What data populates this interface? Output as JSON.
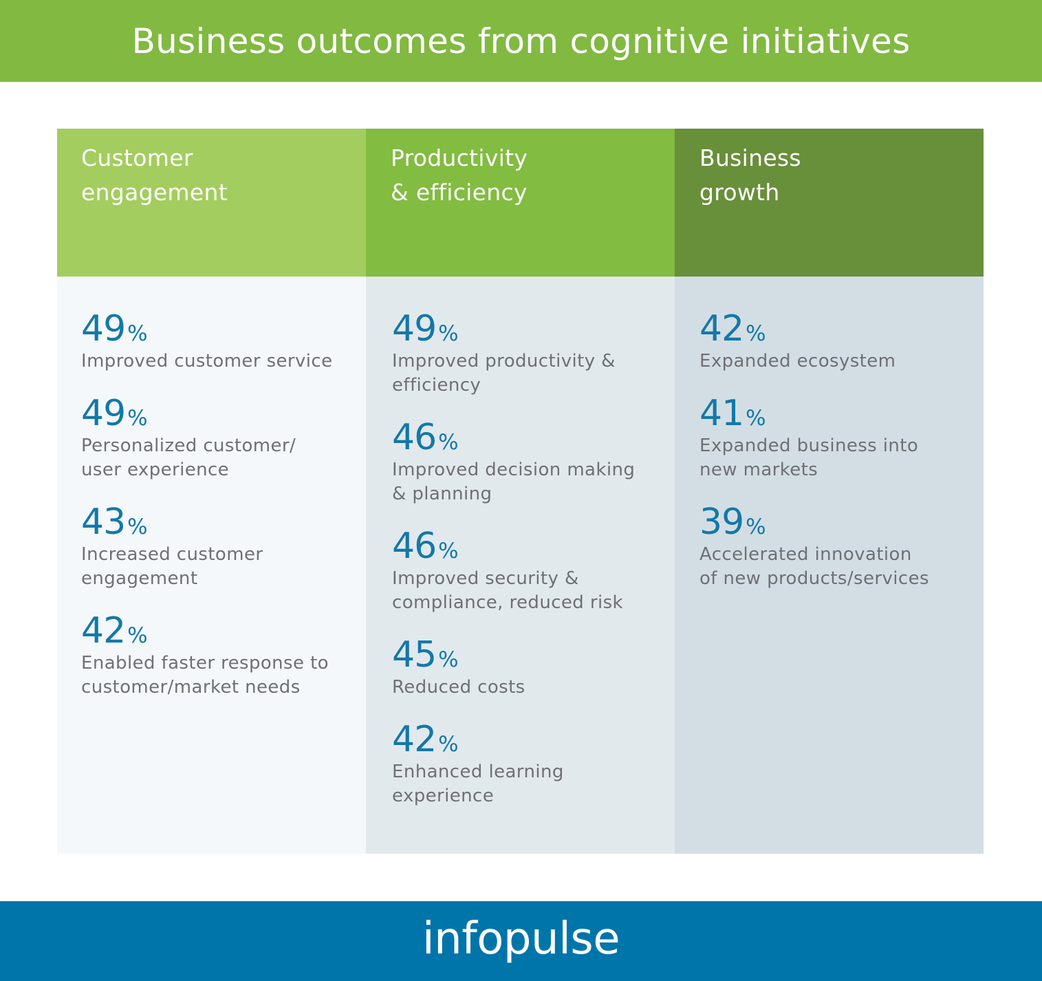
{
  "header": {
    "title": "Business outcomes from cognitive initiatives"
  },
  "columns": [
    {
      "heading": "Customer\nengagement",
      "items": [
        {
          "value": "49",
          "unit": "%",
          "label": "Improved customer service"
        },
        {
          "value": "49",
          "unit": "%",
          "label": "Personalized customer/\nuser experience"
        },
        {
          "value": "43",
          "unit": "%",
          "label": "Increased customer\nengagement"
        },
        {
          "value": "42",
          "unit": "%",
          "label": "Enabled faster response to\ncustomer/market needs"
        }
      ]
    },
    {
      "heading": "Productivity\n& efficiency",
      "items": [
        {
          "value": "49",
          "unit": "%",
          "label": "Improved productivity &\nefficiency"
        },
        {
          "value": "46",
          "unit": "%",
          "label": "Improved decision making\n& planning"
        },
        {
          "value": "46",
          "unit": "%",
          "label": "Improved security &\ncompliance, reduced risk"
        },
        {
          "value": "45",
          "unit": "%",
          "label": "Reduced costs"
        },
        {
          "value": "42",
          "unit": "%",
          "label": "Enhanced learning\nexperience"
        }
      ]
    },
    {
      "heading": "Business\ngrowth",
      "items": [
        {
          "value": "42",
          "unit": "%",
          "label": "Expanded ecosystem"
        },
        {
          "value": "41",
          "unit": "%",
          "label": "Expanded business into\nnew markets"
        },
        {
          "value": "39",
          "unit": "%",
          "label": "Accelerated innovation\nof new products/services"
        }
      ]
    }
  ],
  "footer": {
    "brand": "infopulse"
  },
  "colors": {
    "title_bar": "#81b941",
    "col1_header": "#a3cd5f",
    "col2_header": "#82bc40",
    "col3_header": "#688f3a",
    "percent_text": "#1378a8",
    "footer_bar": "#0075a9"
  }
}
